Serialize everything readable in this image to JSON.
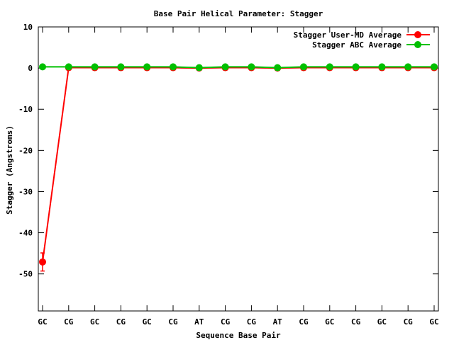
{
  "chart_data": {
    "type": "line",
    "title": "Base Pair Helical Parameter: Stagger",
    "xlabel": "Sequence Base Pair",
    "ylabel": "Stagger (Angstroms)",
    "categories": [
      "GC",
      "CG",
      "GC",
      "CG",
      "GC",
      "CG",
      "AT",
      "CG",
      "CG",
      "AT",
      "CG",
      "GC",
      "CG",
      "GC",
      "CG",
      "GC"
    ],
    "ylim": [
      -59,
      10
    ],
    "yticks": [
      10,
      0,
      -10,
      -20,
      -30,
      -40,
      -50
    ],
    "grid": false,
    "legend_position": "top-right",
    "series": [
      {
        "name": "Stagger User-MD Average",
        "color": "#ff0000",
        "values": [
          -47.1,
          0.1,
          0.1,
          0.1,
          0.1,
          0.1,
          0.0,
          0.1,
          0.1,
          0.0,
          0.1,
          0.1,
          0.1,
          0.1,
          0.1,
          0.1
        ],
        "error": [
          2.2,
          0.3,
          0.3,
          0.3,
          0.3,
          0.3,
          0.3,
          0.3,
          0.3,
          0.3,
          0.3,
          0.3,
          0.3,
          0.3,
          0.3,
          0.3
        ]
      },
      {
        "name": "Stagger ABC Average",
        "color": "#00c000",
        "values": [
          0.3,
          0.3,
          0.3,
          0.3,
          0.3,
          0.3,
          0.1,
          0.3,
          0.3,
          0.1,
          0.3,
          0.3,
          0.3,
          0.3,
          0.3,
          0.3
        ],
        "error": [
          0.2,
          0.2,
          0.2,
          0.2,
          0.2,
          0.2,
          0.2,
          0.2,
          0.2,
          0.2,
          0.2,
          0.2,
          0.2,
          0.2,
          0.2,
          0.2
        ]
      }
    ]
  }
}
